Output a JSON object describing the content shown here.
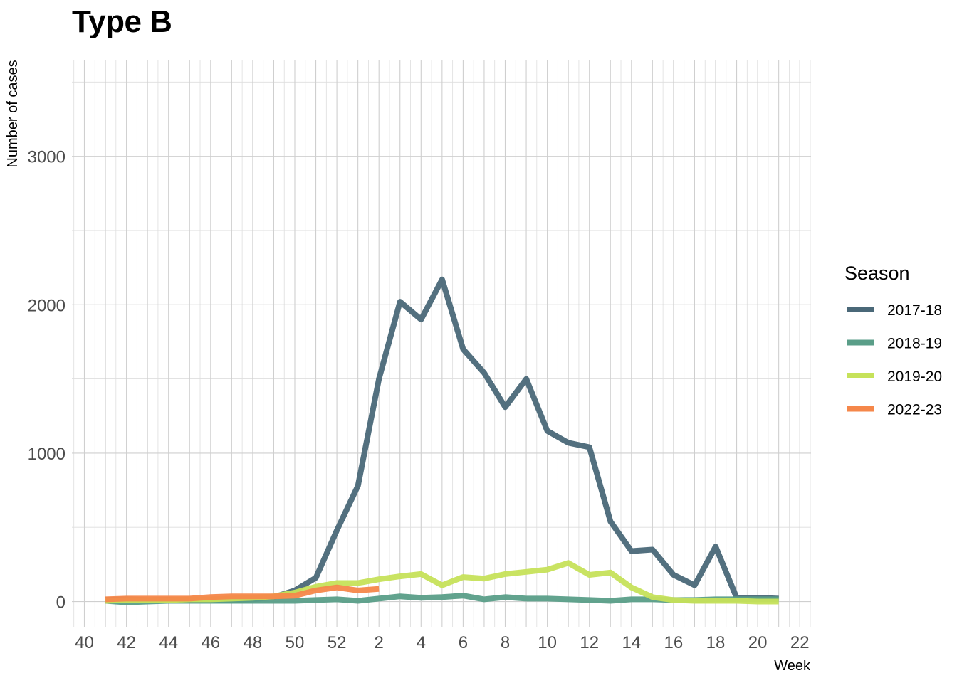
{
  "chart_data": {
    "type": "line",
    "title": "Type B",
    "xlabel": "Week",
    "ylabel": "Number of cases",
    "x_categories": [
      "40",
      "41",
      "42",
      "43",
      "44",
      "45",
      "46",
      "47",
      "48",
      "49",
      "50",
      "51",
      "52",
      "1",
      "2",
      "3",
      "4",
      "5",
      "6",
      "7",
      "8",
      "9",
      "10",
      "11",
      "12",
      "13",
      "14",
      "15",
      "16",
      "17",
      "18",
      "19",
      "20",
      "21",
      "22"
    ],
    "x_tick_labels": [
      "40",
      "42",
      "44",
      "46",
      "48",
      "50",
      "52",
      "2",
      "4",
      "6",
      "8",
      "10",
      "12",
      "14",
      "16",
      "18",
      "20",
      "22"
    ],
    "ylim": [
      -170,
      3650
    ],
    "y_ticks": [
      0,
      1000,
      2000,
      3000
    ],
    "grid": true,
    "legend": {
      "title": "Season",
      "position": "right"
    },
    "series": [
      {
        "name": "2017-18",
        "color": "#4a6878",
        "x": [
          "41",
          "42",
          "43",
          "44",
          "45",
          "46",
          "47",
          "48",
          "49",
          "50",
          "51",
          "52",
          "1",
          "2",
          "3",
          "4",
          "5",
          "6",
          "7",
          "8",
          "9",
          "10",
          "11",
          "12",
          "13",
          "14",
          "15",
          "16",
          "17",
          "18",
          "19",
          "20",
          "21"
        ],
        "values": [
          10,
          15,
          10,
          12,
          12,
          10,
          10,
          15,
          30,
          75,
          160,
          480,
          780,
          1500,
          2020,
          1900,
          2170,
          1700,
          1540,
          1310,
          1500,
          1150,
          1070,
          1040,
          540,
          340,
          350,
          180,
          110,
          370,
          25,
          25,
          20
        ]
      },
      {
        "name": "2018-19",
        "color": "#5a9e88",
        "x": [
          "41",
          "42",
          "43",
          "44",
          "45",
          "46",
          "47",
          "48",
          "49",
          "50",
          "51",
          "52",
          "1",
          "2",
          "3",
          "4",
          "5",
          "6",
          "7",
          "8",
          "9",
          "10",
          "11",
          "12",
          "13",
          "14",
          "15",
          "16",
          "17",
          "18",
          "19",
          "20",
          "21"
        ],
        "values": [
          5,
          -5,
          0,
          5,
          5,
          5,
          5,
          5,
          5,
          5,
          10,
          15,
          5,
          20,
          35,
          25,
          30,
          40,
          15,
          30,
          20,
          20,
          15,
          10,
          5,
          15,
          15,
          10,
          10,
          15,
          15,
          15,
          15
        ]
      },
      {
        "name": "2019-20",
        "color": "#c6e25a",
        "x": [
          "41",
          "42",
          "43",
          "44",
          "45",
          "46",
          "47",
          "48",
          "49",
          "50",
          "51",
          "52",
          "1",
          "2",
          "3",
          "4",
          "5",
          "6",
          "7",
          "8",
          "9",
          "10",
          "11",
          "12",
          "13",
          "14",
          "15",
          "16",
          "17",
          "18",
          "19",
          "20",
          "21"
        ],
        "values": [
          5,
          10,
          10,
          10,
          15,
          15,
          20,
          25,
          35,
          60,
          100,
          125,
          125,
          150,
          170,
          185,
          110,
          165,
          155,
          185,
          200,
          215,
          260,
          180,
          195,
          95,
          30,
          10,
          5,
          5,
          5,
          0,
          0
        ]
      },
      {
        "name": "2022-23",
        "color": "#f5874a",
        "x": [
          "41",
          "42",
          "43",
          "44",
          "45",
          "46",
          "47",
          "48",
          "49",
          "50",
          "51",
          "52",
          "1",
          "2"
        ],
        "values": [
          15,
          20,
          20,
          20,
          20,
          30,
          35,
          35,
          35,
          40,
          75,
          95,
          75,
          85
        ]
      }
    ]
  }
}
